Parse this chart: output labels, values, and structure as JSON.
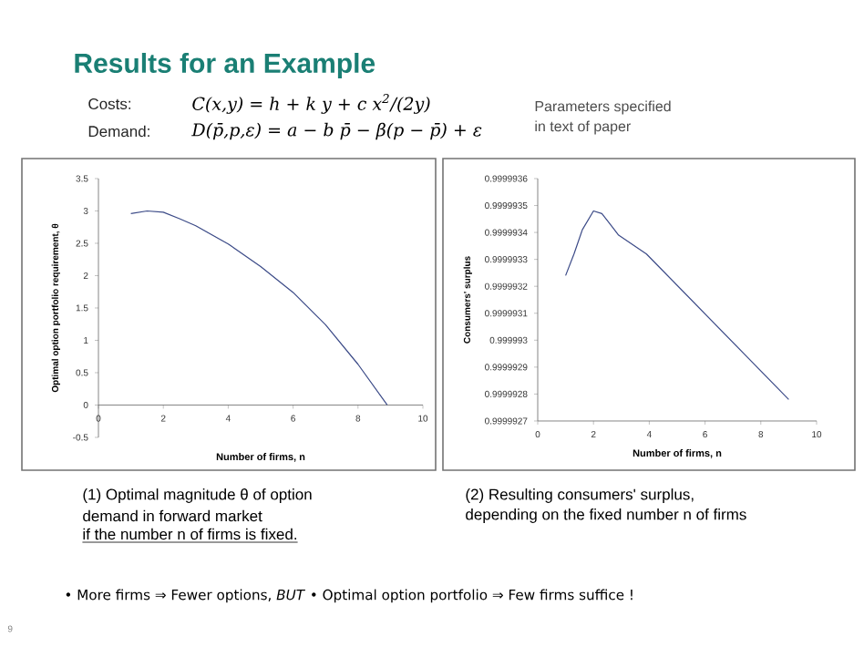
{
  "chart_data": [
    {
      "type": "line",
      "title": "Results for an Example",
      "xlabel": "Number of firms, n",
      "ylabel": "Optimal option portfolio requirement, θ",
      "color": "#3b4a87",
      "x": [
        1,
        1.5,
        2,
        2.5,
        3,
        4,
        5,
        6,
        7,
        8,
        8.9
      ],
      "values": [
        2.96,
        3.0,
        2.98,
        2.88,
        2.77,
        2.49,
        2.14,
        1.74,
        1.24,
        0.63,
        0
      ],
      "xlim": [
        0,
        10
      ],
      "ylim": [
        -0.5,
        3.5
      ],
      "xticks": [
        0,
        2,
        4,
        6,
        8,
        10
      ],
      "yticks": [
        -0.5,
        0,
        0.5,
        1,
        1.5,
        2,
        2.5,
        3,
        3.5
      ],
      "annotations": [
        "Costs:",
        "C(x,y) = h + k y + c x$^{2}$/(2y)",
        "Demand:",
        "D(p̄,p,ε) = a − b p̄ − β(p − p̄) + ε",
        "Parameters specified",
        "in text of paper",
        "(1) Optimal magnitude θ of option",
        "demand in forward market",
        "if the number n of firms is fixed.",
        "• More firms ⇒ Fewer options,   *BUT*   • Optimal option portfolio ⇒ Few firms suffice !",
        "9"
      ]
    },
    {
      "type": "line",
      "xlabel": "Number of firms, n",
      "ylabel": "Consumers' surplus",
      "color": "#3b4a87",
      "x": [
        1,
        1.3,
        1.6,
        2,
        2.3,
        2.6,
        2.9,
        3.9,
        9
      ],
      "values": [
        0.99999324,
        0.99999332,
        0.99999341,
        0.99999348,
        0.99999347,
        0.99999343,
        0.99999339,
        0.99999332,
        0.99999278
      ],
      "xlim": [
        0,
        10
      ],
      "ylim": [
        0.9999927,
        0.9999936
      ],
      "xticks": [
        0,
        2,
        4,
        6,
        8,
        10
      ],
      "yticks": [
        0.9999927,
        0.9999928,
        0.9999929,
        0.999993,
        0.9999931,
        0.9999932,
        0.9999933,
        0.9999934,
        0.9999935,
        0.9999936
      ],
      "annotations": [
        "(2) Resulting consumers' surplus,",
        "depending on the fixed number n of firms"
      ]
    }
  ]
}
